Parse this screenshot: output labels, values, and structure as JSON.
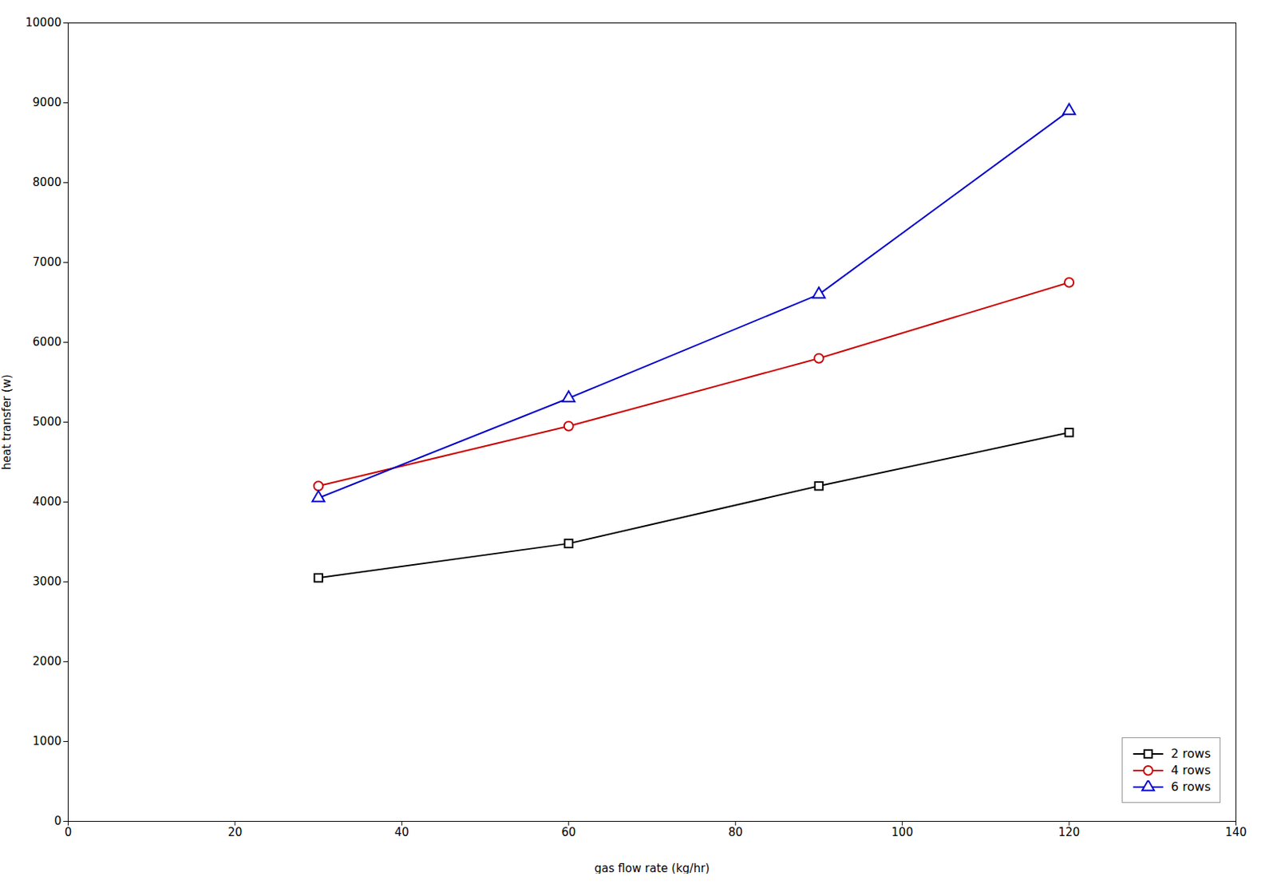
{
  "chart_data": {
    "type": "line",
    "x": [
      30,
      60,
      90,
      120
    ],
    "series": [
      {
        "name": "2 rows",
        "color": "#000000",
        "marker": "square",
        "values": [
          3050,
          3480,
          4200,
          4870
        ]
      },
      {
        "name": "4 rows",
        "color": "#cc0000",
        "marker": "circle",
        "values": [
          4200,
          4950,
          5800,
          6750
        ]
      },
      {
        "name": "6 rows",
        "color": "#0000cc",
        "marker": "triangle",
        "values": [
          4050,
          5300,
          6600,
          8900
        ]
      }
    ],
    "xlabel": "gas flow rate (kg/hr)",
    "ylabel": "heat transfer (w)",
    "xlim": [
      0,
      140
    ],
    "ylim": [
      0,
      10000
    ],
    "xticks": [
      0,
      20,
      40,
      60,
      80,
      100,
      120,
      140
    ],
    "yticks": [
      0,
      1000,
      2000,
      3000,
      4000,
      5000,
      6000,
      7000,
      8000,
      9000,
      10000
    ],
    "legend": "lower right",
    "grid": false
  }
}
